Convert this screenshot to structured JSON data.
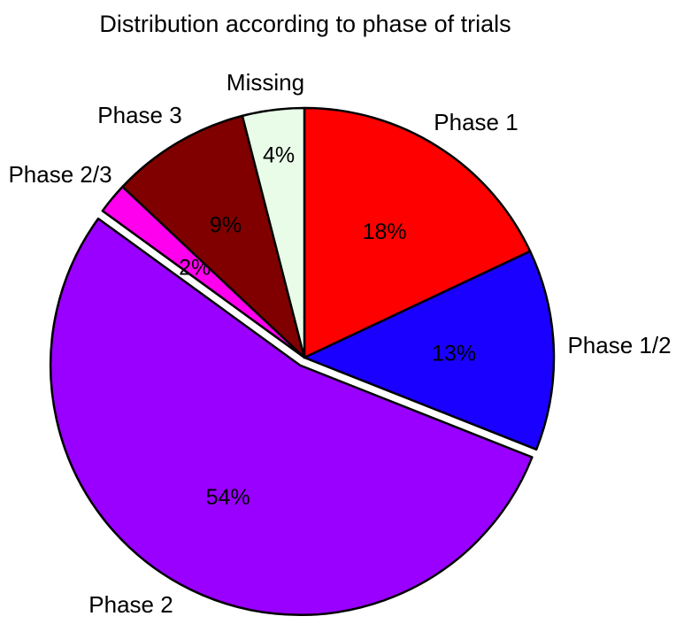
{
  "chart_data": {
    "type": "pie",
    "title": "Distribution according to phase of trials",
    "slices": [
      {
        "category": "Phase 1",
        "label": "18%",
        "value": 18,
        "color": "#ff0000"
      },
      {
        "category": "Phase 1/2",
        "label": "13%",
        "value": 13,
        "color": "#1a00ff"
      },
      {
        "category": "Phase 2",
        "label": "54%",
        "value": 54,
        "color": "#9900ff"
      },
      {
        "category": "Phase 2/3",
        "label": "2%",
        "value": 2,
        "color": "#ff00ee"
      },
      {
        "category": "Phase 3",
        "label": "9%",
        "value": 9,
        "color": "#800000"
      },
      {
        "category": "Missing",
        "label": "4%",
        "value": 4,
        "color": "#e8fce8"
      }
    ],
    "exploded": [
      "Phase 2"
    ],
    "start_angle_deg": 0,
    "direction": "clockwise",
    "legend": "none"
  }
}
